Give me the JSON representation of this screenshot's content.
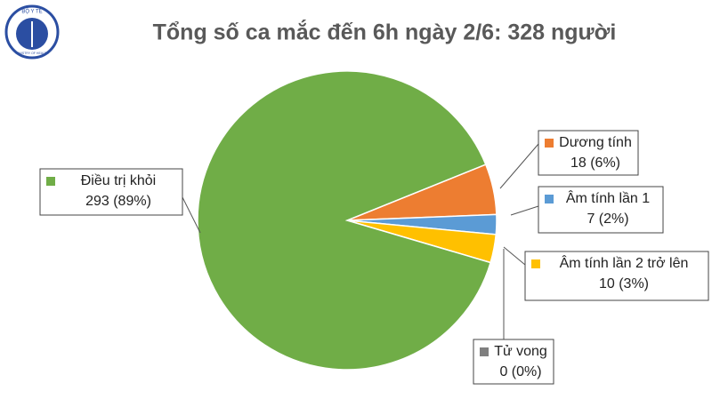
{
  "logo": {
    "top": "BỘ Y TẾ",
    "bottom": "MINISTRY OF HEALTH"
  },
  "chart_data": {
    "type": "pie",
    "title": "Tổng số ca mắc đến 6h ngày 2/6: 328 người",
    "categories": [
      "Dương tính",
      "Âm tính lần 1",
      "Âm tính lần 2 trở lên",
      "Tử vong",
      "Điều trị khỏi"
    ],
    "values": [
      18,
      7,
      10,
      0,
      293
    ],
    "value_labels": [
      "18 (6%)",
      "7 (2%)",
      "10 (3%)",
      "0 (0%)",
      "293 (89%)"
    ],
    "colors": [
      "#ed7d31",
      "#5b9bd5",
      "#ffc000",
      "#7f7f7f",
      "#70ad47"
    ]
  }
}
